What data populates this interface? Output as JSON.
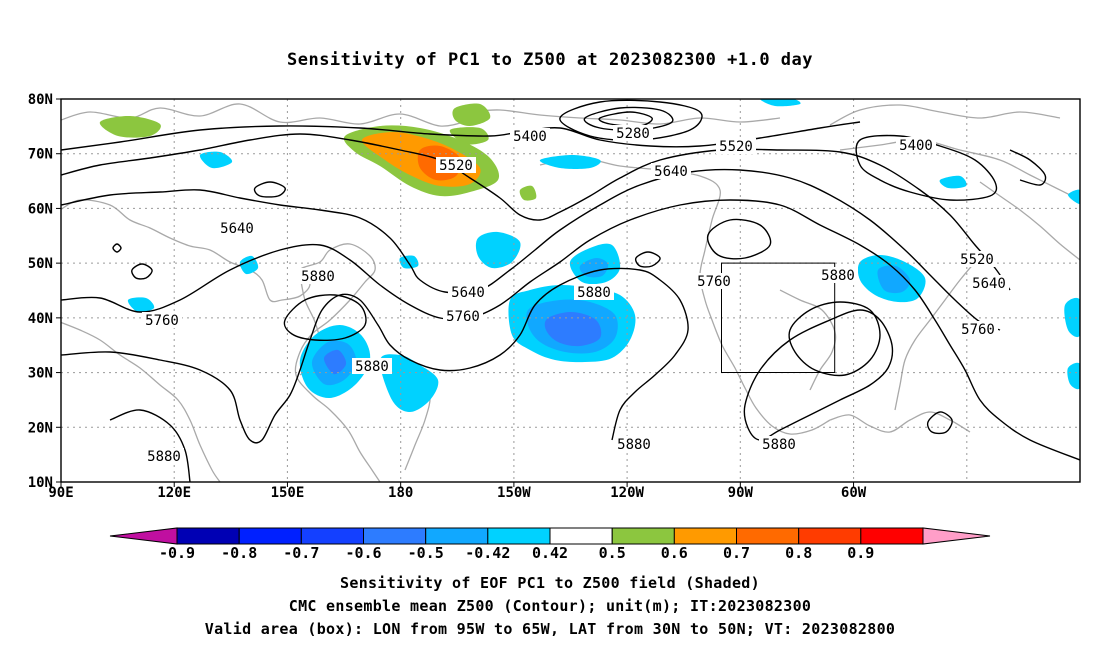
{
  "title": "Sensitivity of PC1 to Z500 at 2023082300 +1.0 day",
  "map": {
    "lat_labels": [
      "80N",
      "70N",
      "60N",
      "50N",
      "40N",
      "30N",
      "20N",
      "10N"
    ],
    "lon_labels": [
      "90E",
      "120E",
      "150E",
      "180",
      "150W",
      "120W",
      "90W",
      "60W"
    ],
    "valid_box": {
      "lon_from": "95W",
      "lon_to": "65W",
      "lat_from": "30N",
      "lat_to": "50N"
    },
    "contour_labels": [
      "5280",
      "5400",
      "5400",
      "5520",
      "5520",
      "5520",
      "5640",
      "5640",
      "5640",
      "5640",
      "5760",
      "5760",
      "5760",
      "5760",
      "5880",
      "5880",
      "5880",
      "5880",
      "5880",
      "5880",
      "5880"
    ],
    "colors": {
      "land_outline": "#a9a9a9",
      "contour": "#000000",
      "grid": "#9a9a9a"
    }
  },
  "colorbar": {
    "labels": [
      "-0.9",
      "-0.8",
      "-0.7",
      "-0.6",
      "-0.5",
      "-0.42",
      "0.42",
      "0.5",
      "0.6",
      "0.7",
      "0.8",
      "0.9"
    ],
    "colors": [
      "#c00fa0",
      "#0000b4",
      "#0020ff",
      "#1440ff",
      "#2d7cff",
      "#11a8ff",
      "#00d2ff",
      "#ffffff",
      "#8cc63f",
      "#ff9a00",
      "#ff6a00",
      "#ff3c00",
      "#ff0000",
      "#ff9ec8"
    ]
  },
  "captions": {
    "line1": "Sensitivity of EOF PC1 to Z500 field (Shaded)",
    "line2": "CMC ensemble mean Z500 (Contour); unit(m); IT:2023082300",
    "line3": "Valid area (box): LON from 95W to 65W, LAT from 30N to 50N; VT: 2023082800"
  }
}
